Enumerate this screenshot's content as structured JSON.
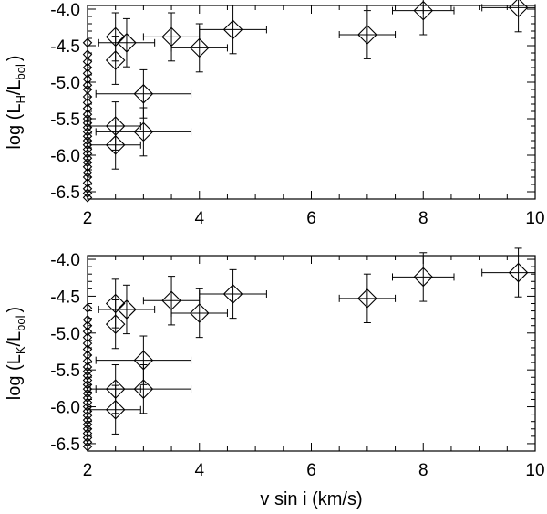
{
  "chart_data": [
    {
      "type": "scatter",
      "ylabel": {
        "prefix": "log (L",
        "sub1": "H",
        "mid": "/L",
        "sub2": "bol",
        "suffix": ")"
      },
      "xlabel": "",
      "xlim": [
        2,
        10
      ],
      "ylim": [
        -6.6,
        -3.95
      ],
      "xticks": [
        "2",
        "4",
        "6",
        "8",
        "10"
      ],
      "yticks": [
        "-4.0",
        "-4.5",
        "-5.0",
        "-5.5",
        "-6.0",
        "-6.5"
      ],
      "detections": [
        {
          "x": 2.5,
          "y": -4.38,
          "xerr": 0.0,
          "yerr": 0.33
        },
        {
          "x": 2.7,
          "y": -4.46,
          "xerr": 0.5,
          "yerr": 0.33
        },
        {
          "x": 2.5,
          "y": -4.7,
          "xerr": 0.0,
          "yerr": 0.33
        },
        {
          "x": 3.5,
          "y": -4.38,
          "xerr": 0.5,
          "yerr": 0.33
        },
        {
          "x": 4.0,
          "y": -4.53,
          "xerr": 0.5,
          "yerr": 0.33
        },
        {
          "x": 4.6,
          "y": -4.28,
          "xerr": 0.6,
          "yerr": 0.33
        },
        {
          "x": 7.0,
          "y": -4.35,
          "xerr": 0.5,
          "yerr": 0.33
        },
        {
          "x": 8.0,
          "y": -4.02,
          "xerr": 0.55,
          "yerr": 0.33
        },
        {
          "x": 9.7,
          "y": -3.98,
          "xerr": 0.65,
          "yerr": 0.33
        },
        {
          "x": 3.0,
          "y": -5.16,
          "xerr": 0.85,
          "yerr": 0.33
        },
        {
          "x": 2.5,
          "y": -5.6,
          "xerr": 0.45,
          "yerr": 0.33
        },
        {
          "x": 3.0,
          "y": -5.68,
          "xerr": 0.85,
          "yerr": 0.33
        },
        {
          "x": 2.5,
          "y": -5.86,
          "xerr": 0.45,
          "yerr": 0.33
        }
      ],
      "limits_x": 2.0,
      "limits_y": [
        -4.46,
        -4.62,
        -4.72,
        -4.8,
        -4.88,
        -4.96,
        -5.04,
        -5.1,
        -5.2,
        -5.28,
        -5.36,
        -5.44,
        -5.5,
        -5.56,
        -5.62,
        -5.68,
        -5.74,
        -5.8,
        -5.86,
        -5.92,
        -5.98,
        -6.04,
        -6.1,
        -6.16,
        -6.24,
        -6.3,
        -6.38,
        -6.46,
        -6.52,
        -6.58
      ]
    },
    {
      "type": "scatter",
      "ylabel": {
        "prefix": "log (L",
        "sub1": "K",
        "mid": "/L",
        "sub2": "bol",
        "suffix": ")"
      },
      "xlabel": "v sin i (km/s)",
      "xlim": [
        2,
        10
      ],
      "ylim": [
        -6.6,
        -3.95
      ],
      "xticks": [
        "2",
        "4",
        "6",
        "8",
        "10"
      ],
      "yticks": [
        "-4.0",
        "-4.5",
        "-5.0",
        "-5.5",
        "-6.0",
        "-6.5"
      ],
      "detections": [
        {
          "x": 2.5,
          "y": -4.6,
          "xerr": 0.0,
          "yerr": 0.33
        },
        {
          "x": 2.7,
          "y": -4.68,
          "xerr": 0.5,
          "yerr": 0.33
        },
        {
          "x": 2.5,
          "y": -4.88,
          "xerr": 0.0,
          "yerr": 0.33
        },
        {
          "x": 3.5,
          "y": -4.56,
          "xerr": 0.5,
          "yerr": 0.33
        },
        {
          "x": 4.0,
          "y": -4.73,
          "xerr": 0.5,
          "yerr": 0.33
        },
        {
          "x": 4.6,
          "y": -4.47,
          "xerr": 0.6,
          "yerr": 0.33
        },
        {
          "x": 7.0,
          "y": -4.53,
          "xerr": 0.5,
          "yerr": 0.33
        },
        {
          "x": 8.0,
          "y": -4.24,
          "xerr": 0.55,
          "yerr": 0.33
        },
        {
          "x": 9.7,
          "y": -4.18,
          "xerr": 0.65,
          "yerr": 0.33
        },
        {
          "x": 3.0,
          "y": -5.37,
          "xerr": 0.85,
          "yerr": 0.33
        },
        {
          "x": 2.5,
          "y": -5.76,
          "xerr": 0.45,
          "yerr": 0.33
        },
        {
          "x": 3.0,
          "y": -5.76,
          "xerr": 0.85,
          "yerr": 0.33
        },
        {
          "x": 2.5,
          "y": -6.04,
          "xerr": 0.45,
          "yerr": 0.33
        }
      ],
      "limits_x": 2.0,
      "limits_y": [
        -4.66,
        -4.82,
        -4.9,
        -4.98,
        -5.06,
        -5.14,
        -5.22,
        -5.3,
        -5.38,
        -5.46,
        -5.52,
        -5.58,
        -5.64,
        -5.7,
        -5.76,
        -5.82,
        -5.88,
        -5.94,
        -6.0,
        -6.06,
        -6.12,
        -6.18,
        -6.24,
        -6.3,
        -6.36,
        -6.42,
        -6.48,
        -6.54
      ]
    }
  ]
}
